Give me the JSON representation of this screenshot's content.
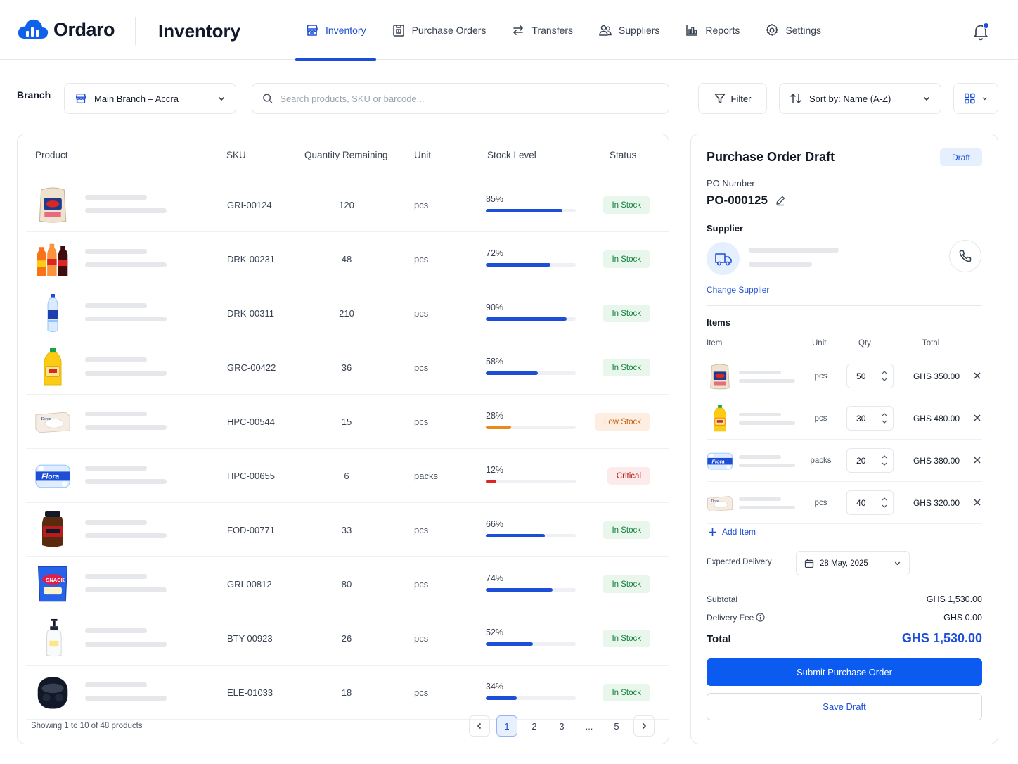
{
  "header": {
    "logo_text": "Ordaro",
    "app_title": "Inventory",
    "nav": [
      {
        "label": "Inventory",
        "icon": "store-icon",
        "active": true
      },
      {
        "label": "Purchase Orders",
        "icon": "purchase-orders-icon"
      },
      {
        "label": "Transfers",
        "icon": "transfer-arrows-icon"
      },
      {
        "label": "Suppliers",
        "icon": "users-icon"
      },
      {
        "label": "Reports",
        "icon": "bar-chart-icon"
      },
      {
        "label": "Settings",
        "icon": "gear-icon"
      }
    ],
    "notifications_icon": "bell-icon"
  },
  "filters": {
    "branch_label": "Branch",
    "branch_value": "Main Branch – Accra",
    "search_placeholder": "Search products, SKU or barcode...",
    "filter_label": "Filter",
    "sort_label": "Sort by: Name (A-Z)",
    "view_icon": "grid-view-icon"
  },
  "table": {
    "columns": [
      "Product",
      "SKU",
      "Quantity Remaining",
      "Unit",
      "Stock Level",
      "Status"
    ],
    "rows": [
      {
        "product_icon": "flour-bag-icon",
        "sku": "GRI-00124",
        "qty": "120",
        "unit": "pcs",
        "stock_pct": "85%",
        "stock_level": 0.85,
        "status": "In Stock",
        "status_type": "in"
      },
      {
        "product_icon": "soda-bottles-icon",
        "sku": "DRK-00231",
        "qty": "48",
        "unit": "pcs",
        "stock_pct": "72%",
        "stock_level": 0.72,
        "status": "In Stock",
        "status_type": "in"
      },
      {
        "product_icon": "water-bottle-icon",
        "sku": "DRK-00311",
        "qty": "210",
        "unit": "pcs",
        "stock_pct": "90%",
        "stock_level": 0.9,
        "status": "In Stock",
        "status_type": "in"
      },
      {
        "product_icon": "oil-bottle-icon",
        "sku": "GRC-00422",
        "qty": "36",
        "unit": "pcs",
        "stock_pct": "58%",
        "stock_level": 0.58,
        "status": "In Stock",
        "status_type": "in"
      },
      {
        "product_icon": "soap-box-icon",
        "sku": "HPC-00544",
        "qty": "15",
        "unit": "pcs",
        "stock_pct": "28%",
        "stock_level": 0.28,
        "status": "Low Stock",
        "status_type": "low"
      },
      {
        "product_icon": "tissue-pack-icon",
        "sku": "HPC-00655",
        "qty": "6",
        "unit": "packs",
        "stock_pct": "12%",
        "stock_level": 0.12,
        "status": "Critical",
        "status_type": "crit"
      },
      {
        "product_icon": "coffee-jar-icon",
        "sku": "FOD-00771",
        "qty": "33",
        "unit": "pcs",
        "stock_pct": "66%",
        "stock_level": 0.66,
        "status": "In Stock",
        "status_type": "in"
      },
      {
        "product_icon": "snack-pack-icon",
        "sku": "GRI-00812",
        "qty": "80",
        "unit": "pcs",
        "stock_pct": "74%",
        "stock_level": 0.74,
        "status": "In Stock",
        "status_type": "in"
      },
      {
        "product_icon": "lotion-bottle-icon",
        "sku": "BTY-00923",
        "qty": "26",
        "unit": "pcs",
        "stock_pct": "52%",
        "stock_level": 0.52,
        "status": "In Stock",
        "status_type": "in"
      },
      {
        "product_icon": "earbuds-case-icon",
        "sku": "ELE-01033",
        "qty": "18",
        "unit": "pcs",
        "stock_pct": "34%",
        "stock_level": 0.34,
        "status": "In Stock",
        "status_type": "in"
      }
    ],
    "showing": "Showing 1 to 10 of 48 products",
    "pagination": [
      "1",
      "2",
      "3",
      "...",
      "5"
    ],
    "current_page": "1"
  },
  "purchase_order": {
    "title": "Purchase Order Draft",
    "badge": "Draft",
    "po_number_label": "PO Number",
    "po_number": "PO-000125",
    "supplier_label": "Supplier",
    "change_supplier": "Change Supplier",
    "items_label": "Items",
    "items_columns": [
      "Item",
      "Unit",
      "Qty",
      "Total"
    ],
    "items": [
      {
        "icon": "flour-bag-icon",
        "unit": "pcs",
        "qty": "50",
        "total": "GHS 350.00"
      },
      {
        "icon": "oil-bottle-icon",
        "unit": "pcs",
        "qty": "30",
        "total": "GHS 480.00"
      },
      {
        "icon": "tissue-pack-icon",
        "unit": "packs",
        "qty": "20",
        "total": "GHS 380.00"
      },
      {
        "icon": "soap-box-icon",
        "unit": "pcs",
        "qty": "40",
        "total": "GHS 320.00"
      }
    ],
    "add_item": "Add Item",
    "expected_delivery_label": "Expected Delivery",
    "expected_delivery": "28 May, 2025",
    "subtotal_label": "Subtotal",
    "subtotal": "GHS 1,530.00",
    "delivery_fee_label": "Delivery Fee",
    "delivery_fee": "GHS 0.00",
    "total_label": "Total",
    "total": "GHS 1,530.00",
    "submit_label": "Submit Purchase Order",
    "save_label": "Save Draft"
  },
  "colors": {
    "accent": "#1d4ed8",
    "primary_button": "#0b5bf0",
    "in_stock": "#15803d",
    "low_stock": "#ea8a1b",
    "critical": "#dc2626"
  }
}
